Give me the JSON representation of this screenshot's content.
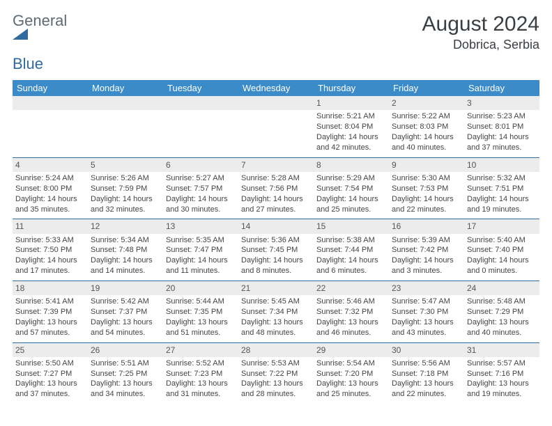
{
  "header": {
    "logo_word1": "General",
    "logo_word2": "Blue",
    "logo_word1_color": "#77838c",
    "logo_word2_color": "#2f6aa0",
    "logo_icon_color": "#2f6aa0",
    "month_title": "August 2024",
    "location": "Dobrica, Serbia"
  },
  "style": {
    "header_bg": "#3b8bc9",
    "header_text": "#ffffff",
    "daynum_bg": "#ececec",
    "row_border": "#2f6aa0",
    "body_text": "#444444",
    "font_family": "Arial"
  },
  "calendar": {
    "day_labels": [
      "Sunday",
      "Monday",
      "Tuesday",
      "Wednesday",
      "Thursday",
      "Friday",
      "Saturday"
    ],
    "weeks": [
      [
        null,
        null,
        null,
        null,
        {
          "n": "1",
          "sunrise": "Sunrise: 5:21 AM",
          "sunset": "Sunset: 8:04 PM",
          "daylight": "Daylight: 14 hours and 42 minutes."
        },
        {
          "n": "2",
          "sunrise": "Sunrise: 5:22 AM",
          "sunset": "Sunset: 8:03 PM",
          "daylight": "Daylight: 14 hours and 40 minutes."
        },
        {
          "n": "3",
          "sunrise": "Sunrise: 5:23 AM",
          "sunset": "Sunset: 8:01 PM",
          "daylight": "Daylight: 14 hours and 37 minutes."
        }
      ],
      [
        {
          "n": "4",
          "sunrise": "Sunrise: 5:24 AM",
          "sunset": "Sunset: 8:00 PM",
          "daylight": "Daylight: 14 hours and 35 minutes."
        },
        {
          "n": "5",
          "sunrise": "Sunrise: 5:26 AM",
          "sunset": "Sunset: 7:59 PM",
          "daylight": "Daylight: 14 hours and 32 minutes."
        },
        {
          "n": "6",
          "sunrise": "Sunrise: 5:27 AM",
          "sunset": "Sunset: 7:57 PM",
          "daylight": "Daylight: 14 hours and 30 minutes."
        },
        {
          "n": "7",
          "sunrise": "Sunrise: 5:28 AM",
          "sunset": "Sunset: 7:56 PM",
          "daylight": "Daylight: 14 hours and 27 minutes."
        },
        {
          "n": "8",
          "sunrise": "Sunrise: 5:29 AM",
          "sunset": "Sunset: 7:54 PM",
          "daylight": "Daylight: 14 hours and 25 minutes."
        },
        {
          "n": "9",
          "sunrise": "Sunrise: 5:30 AM",
          "sunset": "Sunset: 7:53 PM",
          "daylight": "Daylight: 14 hours and 22 minutes."
        },
        {
          "n": "10",
          "sunrise": "Sunrise: 5:32 AM",
          "sunset": "Sunset: 7:51 PM",
          "daylight": "Daylight: 14 hours and 19 minutes."
        }
      ],
      [
        {
          "n": "11",
          "sunrise": "Sunrise: 5:33 AM",
          "sunset": "Sunset: 7:50 PM",
          "daylight": "Daylight: 14 hours and 17 minutes."
        },
        {
          "n": "12",
          "sunrise": "Sunrise: 5:34 AM",
          "sunset": "Sunset: 7:48 PM",
          "daylight": "Daylight: 14 hours and 14 minutes."
        },
        {
          "n": "13",
          "sunrise": "Sunrise: 5:35 AM",
          "sunset": "Sunset: 7:47 PM",
          "daylight": "Daylight: 14 hours and 11 minutes."
        },
        {
          "n": "14",
          "sunrise": "Sunrise: 5:36 AM",
          "sunset": "Sunset: 7:45 PM",
          "daylight": "Daylight: 14 hours and 8 minutes."
        },
        {
          "n": "15",
          "sunrise": "Sunrise: 5:38 AM",
          "sunset": "Sunset: 7:44 PM",
          "daylight": "Daylight: 14 hours and 6 minutes."
        },
        {
          "n": "16",
          "sunrise": "Sunrise: 5:39 AM",
          "sunset": "Sunset: 7:42 PM",
          "daylight": "Daylight: 14 hours and 3 minutes."
        },
        {
          "n": "17",
          "sunrise": "Sunrise: 5:40 AM",
          "sunset": "Sunset: 7:40 PM",
          "daylight": "Daylight: 14 hours and 0 minutes."
        }
      ],
      [
        {
          "n": "18",
          "sunrise": "Sunrise: 5:41 AM",
          "sunset": "Sunset: 7:39 PM",
          "daylight": "Daylight: 13 hours and 57 minutes."
        },
        {
          "n": "19",
          "sunrise": "Sunrise: 5:42 AM",
          "sunset": "Sunset: 7:37 PM",
          "daylight": "Daylight: 13 hours and 54 minutes."
        },
        {
          "n": "20",
          "sunrise": "Sunrise: 5:44 AM",
          "sunset": "Sunset: 7:35 PM",
          "daylight": "Daylight: 13 hours and 51 minutes."
        },
        {
          "n": "21",
          "sunrise": "Sunrise: 5:45 AM",
          "sunset": "Sunset: 7:34 PM",
          "daylight": "Daylight: 13 hours and 48 minutes."
        },
        {
          "n": "22",
          "sunrise": "Sunrise: 5:46 AM",
          "sunset": "Sunset: 7:32 PM",
          "daylight": "Daylight: 13 hours and 46 minutes."
        },
        {
          "n": "23",
          "sunrise": "Sunrise: 5:47 AM",
          "sunset": "Sunset: 7:30 PM",
          "daylight": "Daylight: 13 hours and 43 minutes."
        },
        {
          "n": "24",
          "sunrise": "Sunrise: 5:48 AM",
          "sunset": "Sunset: 7:29 PM",
          "daylight": "Daylight: 13 hours and 40 minutes."
        }
      ],
      [
        {
          "n": "25",
          "sunrise": "Sunrise: 5:50 AM",
          "sunset": "Sunset: 7:27 PM",
          "daylight": "Daylight: 13 hours and 37 minutes."
        },
        {
          "n": "26",
          "sunrise": "Sunrise: 5:51 AM",
          "sunset": "Sunset: 7:25 PM",
          "daylight": "Daylight: 13 hours and 34 minutes."
        },
        {
          "n": "27",
          "sunrise": "Sunrise: 5:52 AM",
          "sunset": "Sunset: 7:23 PM",
          "daylight": "Daylight: 13 hours and 31 minutes."
        },
        {
          "n": "28",
          "sunrise": "Sunrise: 5:53 AM",
          "sunset": "Sunset: 7:22 PM",
          "daylight": "Daylight: 13 hours and 28 minutes."
        },
        {
          "n": "29",
          "sunrise": "Sunrise: 5:54 AM",
          "sunset": "Sunset: 7:20 PM",
          "daylight": "Daylight: 13 hours and 25 minutes."
        },
        {
          "n": "30",
          "sunrise": "Sunrise: 5:56 AM",
          "sunset": "Sunset: 7:18 PM",
          "daylight": "Daylight: 13 hours and 22 minutes."
        },
        {
          "n": "31",
          "sunrise": "Sunrise: 5:57 AM",
          "sunset": "Sunset: 7:16 PM",
          "daylight": "Daylight: 13 hours and 19 minutes."
        }
      ]
    ]
  }
}
